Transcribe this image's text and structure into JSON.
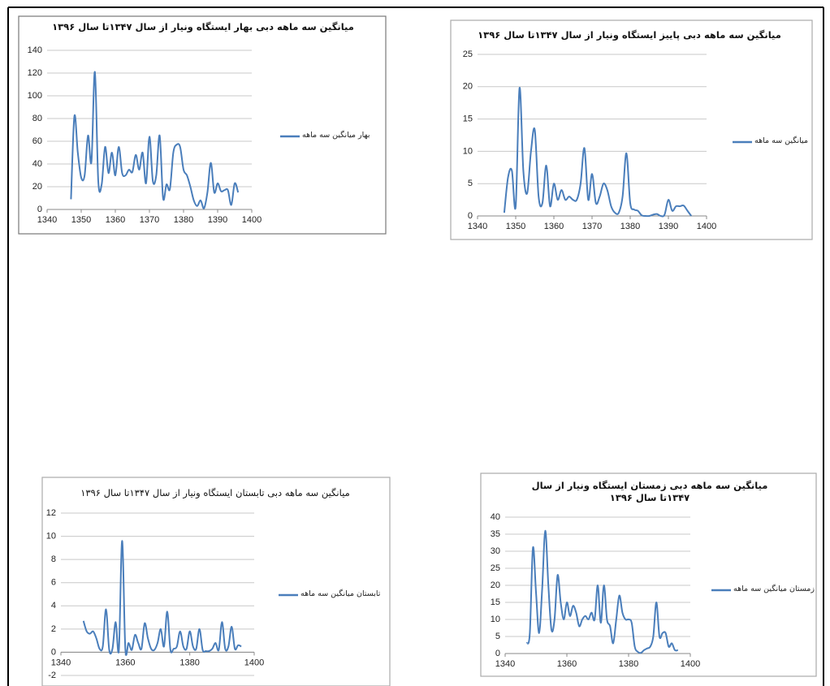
{
  "chart_data": [
    {
      "type": "line",
      "title": "میانگین سه ماهه دبی بهار ایستگاه ونیار از سال ۱۳۴۷تا سال ۱۳۹۶",
      "x": [
        1347,
        1348,
        1349,
        1350,
        1351,
        1352,
        1353,
        1354,
        1355,
        1356,
        1357,
        1358,
        1359,
        1360,
        1361,
        1362,
        1363,
        1364,
        1365,
        1366,
        1367,
        1368,
        1369,
        1370,
        1371,
        1372,
        1373,
        1374,
        1375,
        1376,
        1377,
        1378,
        1379,
        1380,
        1381,
        1382,
        1383,
        1384,
        1385,
        1386,
        1387,
        1388,
        1389,
        1390,
        1391,
        1392,
        1393,
        1394,
        1395,
        1396
      ],
      "series": [
        {
          "name": "بهار میانگین سه ماهه",
          "color": "#4a7ebb",
          "values": [
            9,
            82,
            50,
            28,
            30,
            65,
            42,
            121,
            25,
            22,
            55,
            32,
            50,
            30,
            55,
            32,
            30,
            35,
            33,
            48,
            35,
            50,
            23,
            64,
            25,
            30,
            65,
            10,
            22,
            18,
            50,
            57,
            55,
            35,
            30,
            20,
            8,
            3,
            8,
            1,
            15,
            41,
            15,
            23,
            16,
            17,
            17,
            4,
            23,
            15
          ]
        }
      ],
      "xlim": [
        1340,
        1400
      ],
      "xticks": [
        1340,
        1350,
        1360,
        1370,
        1380,
        1390,
        1400
      ],
      "ylim": [
        0,
        140
      ],
      "yticks": [
        0,
        20,
        40,
        60,
        80,
        100,
        120,
        140
      ],
      "grid": true,
      "legend": "right"
    },
    {
      "type": "line",
      "title": "میانگین سه ماهه دبی پاییز ایستگاه ونیار از سال ۱۳۴۷تا سال ۱۳۹۶",
      "x": [
        1347,
        1348,
        1349,
        1350,
        1351,
        1352,
        1353,
        1354,
        1355,
        1356,
        1357,
        1358,
        1359,
        1360,
        1361,
        1362,
        1363,
        1364,
        1365,
        1366,
        1367,
        1368,
        1369,
        1370,
        1371,
        1372,
        1373,
        1374,
        1375,
        1376,
        1377,
        1378,
        1379,
        1380,
        1381,
        1382,
        1383,
        1384,
        1385,
        1386,
        1387,
        1388,
        1389,
        1390,
        1391,
        1392,
        1393,
        1394,
        1395,
        1396
      ],
      "series": [
        {
          "name": "میانگین سه ماهه",
          "color": "#4a7ebb",
          "values": [
            0.5,
            6,
            7,
            1.5,
            19.8,
            7,
            3.5,
            10,
            13.3,
            3,
            2,
            7.8,
            1.5,
            5,
            2.5,
            4,
            2.5,
            3,
            2.5,
            2.5,
            5,
            10.5,
            2.5,
            6.5,
            2,
            3,
            5,
            4,
            1.5,
            0.5,
            0.5,
            3,
            9.7,
            2,
            1,
            0.8,
            0.1,
            0,
            0,
            0.2,
            0.3,
            0,
            0.2,
            2.5,
            0.8,
            1.5,
            1.5,
            1.6,
            0.8,
            0
          ]
        }
      ],
      "xlim": [
        1340,
        1400
      ],
      "xticks": [
        1340,
        1350,
        1360,
        1370,
        1380,
        1390,
        1400
      ],
      "ylim": [
        0,
        25
      ],
      "yticks": [
        0,
        5,
        10,
        15,
        20,
        25
      ],
      "grid": true,
      "legend": "right"
    },
    {
      "type": "line",
      "title": "میانگین سه ماهه دبی تابستان ایستگاه ونیار از سال ۱۳۴۷تا سال ۱۳۹۶",
      "x": [
        1347,
        1348,
        1349,
        1350,
        1351,
        1352,
        1353,
        1354,
        1355,
        1356,
        1357,
        1358,
        1359,
        1360,
        1361,
        1362,
        1363,
        1364,
        1365,
        1366,
        1367,
        1368,
        1369,
        1370,
        1371,
        1372,
        1373,
        1374,
        1375,
        1376,
        1377,
        1378,
        1379,
        1380,
        1381,
        1382,
        1383,
        1384,
        1385,
        1386,
        1387,
        1388,
        1389,
        1390,
        1391,
        1392,
        1393,
        1394,
        1395,
        1396
      ],
      "series": [
        {
          "name": "تابستان میانگین سه ماهه",
          "color": "#4a7ebb",
          "values": [
            2.7,
            1.8,
            1.6,
            1.8,
            1.2,
            0.3,
            0.5,
            3.7,
            0.2,
            0.3,
            2.6,
            0.2,
            9.6,
            0.3,
            0.8,
            0.2,
            1.5,
            0.8,
            0.3,
            2.5,
            1.2,
            0.3,
            0.2,
            0.8,
            2,
            0.5,
            3.5,
            0.2,
            0.3,
            0.5,
            1.8,
            0.5,
            0.3,
            1.8,
            0.5,
            0.3,
            2,
            0.2,
            0.1,
            0.1,
            0.3,
            0.8,
            0.2,
            2.6,
            0.3,
            0.5,
            2.2,
            0.3,
            0.6,
            0.5
          ]
        }
      ],
      "xlim": [
        1340,
        1400
      ],
      "xticks": [
        1340,
        1360,
        1380,
        1400
      ],
      "ylim": [
        -2,
        12
      ],
      "yticks": [
        -2,
        0,
        2,
        4,
        6,
        8,
        10,
        12
      ],
      "grid": true,
      "legend": "right"
    },
    {
      "type": "line",
      "title": "میانگین سه ماهه دبی زمستان ایستگاه ونیار از سال ۱۳۴۷تا سال ۱۳۹۶",
      "x": [
        1347,
        1348,
        1349,
        1350,
        1351,
        1352,
        1353,
        1354,
        1355,
        1356,
        1357,
        1358,
        1359,
        1360,
        1361,
        1362,
        1363,
        1364,
        1365,
        1366,
        1367,
        1368,
        1369,
        1370,
        1371,
        1372,
        1373,
        1374,
        1375,
        1376,
        1377,
        1378,
        1379,
        1380,
        1381,
        1382,
        1383,
        1384,
        1385,
        1386,
        1387,
        1388,
        1389,
        1390,
        1391,
        1392,
        1393,
        1394,
        1395,
        1396
      ],
      "series": [
        {
          "name": "زمستان میانگین سه ماهه",
          "color": "#4a7ebb",
          "values": [
            3,
            6,
            31,
            18,
            6,
            19,
            36,
            20,
            7,
            10,
            23,
            15,
            10,
            15,
            11,
            14,
            12,
            8,
            10,
            11,
            10,
            12,
            10,
            20,
            9,
            20,
            10,
            8,
            3,
            10,
            17,
            12,
            10,
            10,
            9,
            2,
            0.5,
            0.2,
            1,
            1.5,
            2,
            5,
            15,
            5,
            6,
            6,
            2,
            3,
            1,
            1
          ]
        }
      ],
      "xlim": [
        1340,
        1400
      ],
      "xticks": [
        1340,
        1360,
        1380,
        1400
      ],
      "ylim": [
        0,
        40
      ],
      "yticks": [
        0,
        5,
        10,
        15,
        20,
        25,
        30,
        35,
        40
      ],
      "grid": true,
      "legend": "right"
    }
  ]
}
